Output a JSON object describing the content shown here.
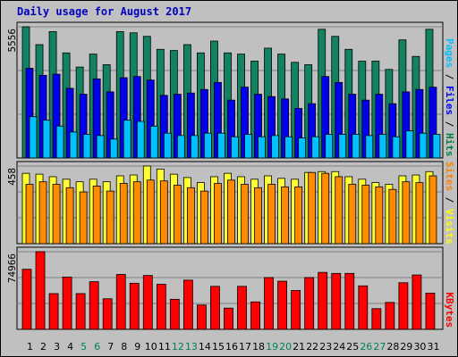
{
  "title": "Daily usage for August 2017",
  "chart_data": [
    {
      "type": "bar",
      "title": "Pages / Files / Hits",
      "ylabel_max": "5556",
      "ymax": 5556,
      "legend": [
        {
          "label": "Pages",
          "color": "#00c0ff"
        },
        {
          "label": "Files",
          "color": "#0000ff"
        },
        {
          "label": "Hits",
          "color": "#008040"
        }
      ],
      "series": [
        {
          "name": "Hits",
          "color": "#128262",
          "values": [
            5556,
            4800,
            5350,
            4450,
            3850,
            4400,
            3950,
            5350,
            5300,
            5150,
            4600,
            4550,
            4800,
            4450,
            4950,
            4450,
            4400,
            4100,
            4650,
            4400,
            4050,
            3950,
            5450,
            5150,
            4600,
            4100,
            4100,
            3750,
            5000,
            4300,
            5450
          ]
        },
        {
          "name": "Files",
          "color": "#0000ee",
          "values": [
            3800,
            3500,
            3550,
            2950,
            2700,
            3350,
            2800,
            3400,
            3450,
            3300,
            2650,
            2700,
            2750,
            2900,
            3200,
            2450,
            3000,
            2700,
            2600,
            2500,
            2100,
            2300,
            3450,
            3200,
            2700,
            2450,
            2700,
            2300,
            2800,
            2900,
            3000
          ]
        },
        {
          "name": "Pages",
          "color": "#00c0ff",
          "values": [
            1750,
            1600,
            1350,
            1100,
            1000,
            950,
            800,
            1600,
            1550,
            1350,
            1050,
            950,
            950,
            1050,
            1050,
            900,
            1000,
            900,
            950,
            900,
            850,
            900,
            1000,
            1000,
            1000,
            950,
            1000,
            900,
            1150,
            1050,
            1000
          ]
        }
      ]
    },
    {
      "type": "bar",
      "title": "Sites / Visits",
      "ylabel_max": "458",
      "ymax": 458,
      "legend": [
        {
          "label": "Sites",
          "color": "#ff8000"
        },
        {
          "label": "Visits",
          "color": "#ffff00"
        }
      ],
      "series": [
        {
          "name": "Visits",
          "color": "#ffff33",
          "values": [
            415,
            410,
            395,
            380,
            365,
            380,
            365,
            400,
            405,
            458,
            440,
            410,
            390,
            360,
            395,
            415,
            395,
            380,
            400,
            385,
            380,
            420,
            425,
            425,
            395,
            380,
            360,
            350,
            400,
            405,
            425
          ]
        },
        {
          "name": "Sites",
          "color": "#ff8c00",
          "values": [
            350,
            365,
            350,
            330,
            305,
            340,
            310,
            355,
            365,
            375,
            370,
            345,
            330,
            310,
            355,
            375,
            350,
            330,
            350,
            335,
            335,
            420,
            415,
            395,
            350,
            345,
            335,
            320,
            365,
            360,
            400
          ]
        }
      ]
    },
    {
      "type": "bar",
      "title": "KBytes",
      "ylabel_max": "74966",
      "ymax": 74966,
      "legend": [
        {
          "label": "KBytes",
          "color": "#ff0000"
        }
      ],
      "series": [
        {
          "name": "KBytes",
          "color": "#ff0000",
          "values": [
            58000,
            75000,
            34500,
            50500,
            34500,
            46000,
            29500,
            53000,
            44500,
            52000,
            43500,
            29000,
            47500,
            23500,
            41500,
            20500,
            41500,
            26500,
            50000,
            46500,
            37500,
            50000,
            55000,
            54000,
            54000,
            42000,
            20000,
            26000,
            45000,
            52500,
            35000
          ]
        }
      ]
    }
  ],
  "days": [
    "1",
    "2",
    "3",
    "4",
    "5",
    "6",
    "7",
    "8",
    "9",
    "10",
    "11",
    "12",
    "13",
    "14",
    "15",
    "16",
    "17",
    "18",
    "19",
    "20",
    "21",
    "22",
    "23",
    "24",
    "25",
    "26",
    "27",
    "28",
    "29",
    "30",
    "31"
  ],
  "weekend_days": [
    5,
    6,
    12,
    13,
    19,
    20,
    26,
    27
  ],
  "colors": {
    "weekday": "#000000",
    "weekend": "#00805c",
    "title": "#0000c0",
    "background": "#c0c0c0",
    "gridline": "#808080"
  }
}
